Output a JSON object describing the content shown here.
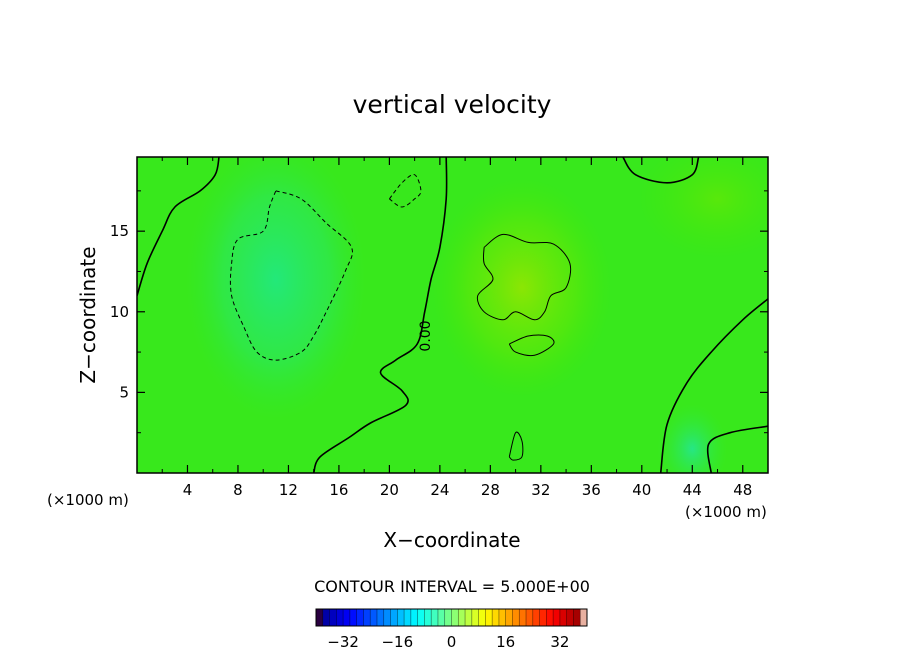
{
  "chart_data": {
    "type": "heatmap",
    "title": "vertical velocity",
    "xlabel": "X−coordinate",
    "ylabel": "Z−coordinate",
    "x_unit_left": "(×1000 m)",
    "x_unit_right": "(×1000 m)",
    "xlim": [
      0,
      50
    ],
    "ylim": [
      0,
      19.6
    ],
    "x_ticks": [
      4,
      8,
      12,
      16,
      20,
      24,
      28,
      32,
      36,
      40,
      44,
      48
    ],
    "y_ticks": [
      5,
      10,
      15
    ],
    "x_tick_labels": [
      "4",
      "8",
      "12",
      "16",
      "20",
      "24",
      "28",
      "32",
      "36",
      "40",
      "44",
      "48"
    ],
    "y_tick_labels": [
      "5",
      "10",
      "15"
    ],
    "contour_interval_text": "CONTOUR INTERVAL = 5.000E+00",
    "contour_label": "0.00",
    "colorbar": {
      "range": [
        -40,
        40
      ],
      "tick_values": [
        -32,
        -16,
        0,
        16,
        32
      ],
      "tick_labels": [
        "−32",
        "−16",
        "0",
        "16",
        "32"
      ]
    },
    "field_features": [
      {
        "kind": "min",
        "x": 11,
        "z": 12,
        "value": -7
      },
      {
        "kind": "max",
        "x": 30.5,
        "z": 11.5,
        "value": 7
      },
      {
        "kind": "max",
        "x": 46,
        "z": 17,
        "value": 3
      },
      {
        "kind": "min",
        "x": 44,
        "z": 1.5,
        "value": -6
      }
    ],
    "contours": [
      {
        "level": 0,
        "style": "solid",
        "points": [
          [
            24.5,
            19.6
          ],
          [
            24.5,
            17
          ],
          [
            24,
            14
          ],
          [
            23.3,
            12
          ],
          [
            22.8,
            10
          ],
          [
            22.2,
            8
          ],
          [
            20.5,
            7
          ],
          [
            19.3,
            6.2
          ],
          [
            21,
            5.1
          ],
          [
            21.3,
            4.2
          ],
          [
            18.5,
            3.1
          ],
          [
            16.8,
            2.2
          ],
          [
            14.5,
            1
          ],
          [
            14,
            0
          ]
        ]
      },
      {
        "level": 0,
        "style": "solid",
        "points": [
          [
            0,
            11
          ],
          [
            0.8,
            13
          ],
          [
            2,
            15
          ],
          [
            3,
            16.5
          ],
          [
            5,
            17.5
          ],
          [
            6.2,
            18.5
          ],
          [
            6.5,
            19.6
          ]
        ]
      },
      {
        "level": 0,
        "style": "solid",
        "points": [
          [
            38.5,
            19.6
          ],
          [
            39.5,
            18.5
          ],
          [
            42,
            18
          ],
          [
            44,
            18.5
          ],
          [
            44.5,
            19.6
          ]
        ]
      },
      {
        "level": 0,
        "style": "solid",
        "points": [
          [
            50,
            10.8
          ],
          [
            48,
            9.5
          ],
          [
            45.5,
            7.5
          ],
          [
            43.5,
            5.5
          ],
          [
            42,
            3
          ],
          [
            41.5,
            0
          ]
        ]
      },
      {
        "level": 0,
        "style": "solid",
        "points": [
          [
            50,
            2.9
          ],
          [
            47,
            2.5
          ],
          [
            45.3,
            1.8
          ],
          [
            45.5,
            0
          ]
        ]
      },
      {
        "level": 5,
        "style": "solid",
        "points": [
          [
            27.5,
            14
          ],
          [
            29,
            14.8
          ],
          [
            31,
            14.3
          ],
          [
            33,
            14.2
          ],
          [
            34.3,
            13
          ],
          [
            34,
            11.5
          ],
          [
            32.8,
            11
          ],
          [
            32.3,
            10
          ],
          [
            31.5,
            9.5
          ],
          [
            30,
            10
          ],
          [
            29,
            9.5
          ],
          [
            27.5,
            10
          ],
          [
            27,
            11
          ],
          [
            28.2,
            12
          ],
          [
            27.5,
            13
          ],
          [
            27.5,
            14
          ]
        ]
      },
      {
        "level": 5,
        "style": "solid",
        "points": [
          [
            29.5,
            8
          ],
          [
            31,
            8.5
          ],
          [
            32.5,
            8.5
          ],
          [
            33,
            8
          ],
          [
            31.5,
            7.3
          ],
          [
            30,
            7.5
          ],
          [
            29.5,
            8
          ]
        ]
      },
      {
        "level": 5,
        "style": "solid",
        "points": [
          [
            29.5,
            1
          ],
          [
            30,
            2.5
          ],
          [
            30.5,
            2
          ],
          [
            30.5,
            1
          ],
          [
            29.8,
            0.8
          ],
          [
            29.5,
            1
          ]
        ]
      },
      {
        "level": -5,
        "style": "dashed",
        "points": [
          [
            11,
            17.5
          ],
          [
            13,
            17
          ],
          [
            15,
            15.5
          ],
          [
            17,
            14
          ],
          [
            16.5,
            12.5
          ],
          [
            15,
            10
          ],
          [
            14,
            8.5
          ],
          [
            13,
            7.5
          ],
          [
            11,
            7
          ],
          [
            9.5,
            7.5
          ],
          [
            8.5,
            9
          ],
          [
            7.5,
            11
          ],
          [
            7.5,
            13
          ],
          [
            8,
            14.5
          ],
          [
            10,
            15
          ],
          [
            10.5,
            16.5
          ],
          [
            11,
            17.5
          ]
        ]
      },
      {
        "level": -5,
        "style": "dashed",
        "points": [
          [
            20,
            17
          ],
          [
            21,
            18
          ],
          [
            22,
            18.5
          ],
          [
            22.5,
            17.5
          ],
          [
            22,
            17
          ],
          [
            21,
            16.5
          ],
          [
            20,
            17
          ]
        ]
      }
    ]
  }
}
